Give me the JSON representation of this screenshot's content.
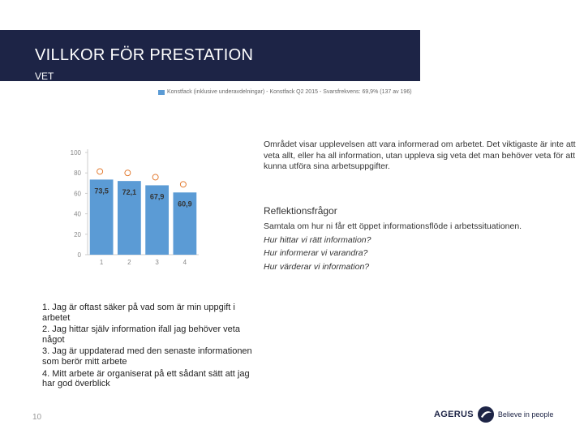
{
  "header": {
    "title": "VILLKOR FÖR PRESTATION",
    "subtitle": "VET"
  },
  "legend": {
    "label": "Konstfack (inklusive underavdelningar) - Konstfack Q2 2015 - Svarsfrekvens: 69,9% (137 av 196)",
    "color": "#5b9bd5"
  },
  "chart_data": {
    "type": "bar",
    "categories": [
      "1",
      "2",
      "3",
      "4"
    ],
    "values": [
      73.5,
      72.1,
      67.9,
      60.9
    ],
    "value_labels": [
      "73,5",
      "72,1",
      "67,9",
      "60,9"
    ],
    "ylim": [
      0,
      100
    ],
    "yticks": [
      "0",
      "20",
      "40",
      "60",
      "80",
      "100"
    ],
    "grid": false,
    "bar_color": "#5b9bd5",
    "marker_color": "#e07020"
  },
  "description": "Området visar upplevelsen att vara informerad om arbetet. Det viktigaste är inte att veta allt, eller ha all information, utan uppleva sig veta det man behöver veta för att kunna utföra sina arbetsuppgifter.",
  "reflection": {
    "title": "Reflektionsfrågor",
    "intro": "Samtala om hur ni får ett öppet informationsflöde i arbetssituationen.",
    "questions": [
      "Hur hittar vi rätt information?",
      "Hur informerar vi varandra?",
      "Hur värderar vi information?"
    ]
  },
  "items": [
    "1. Jag är oftast säker på vad som är min uppgift i arbetet",
    "2. Jag hittar själv information ifall jag behöver veta något",
    "3. Jag är uppdaterad med den senaste informationen som berör mitt arbete",
    "4. Mitt arbete är organiserat på ett sådant sätt att jag har god överblick"
  ],
  "page_number": "10",
  "logo": {
    "brand": "AGERUS",
    "tagline": "Believe in people"
  }
}
